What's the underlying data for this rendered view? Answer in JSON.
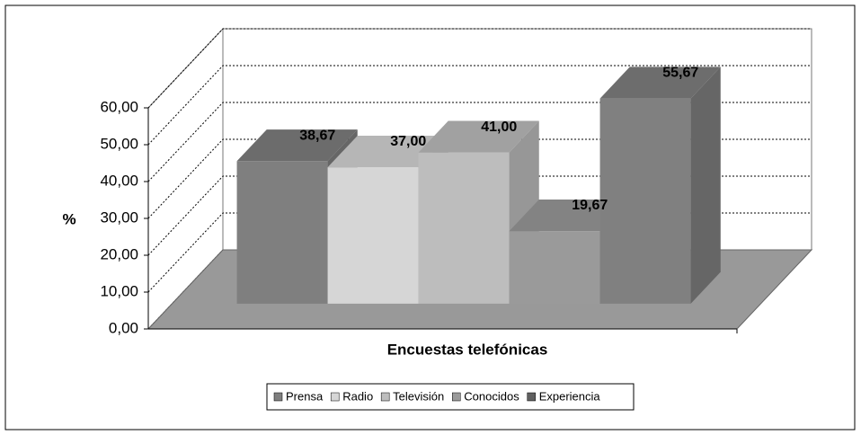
{
  "chart_data": {
    "type": "bar3d",
    "xlabel": "Encuestas telefónicas",
    "ylabel": "%",
    "ylim": [
      0,
      60
    ],
    "yticks": [
      {
        "value": 0,
        "label": "0,00"
      },
      {
        "value": 10,
        "label": "10,00"
      },
      {
        "value": 20,
        "label": "20,00"
      },
      {
        "value": 30,
        "label": "30,00"
      },
      {
        "value": 40,
        "label": "40,00"
      },
      {
        "value": 50,
        "label": "50,00"
      },
      {
        "value": 60,
        "label": "60,00"
      }
    ],
    "grid": true,
    "legend": "bottom",
    "series": [
      {
        "name": "Prensa",
        "color": "#7f7f7f",
        "values": [
          38.67
        ],
        "value_labels": [
          "38,67"
        ]
      },
      {
        "name": "Radio",
        "color": "#d6d6d6",
        "values": [
          37.0
        ],
        "value_labels": [
          "37,00"
        ]
      },
      {
        "name": "Televisión",
        "color": "#bdbdbd",
        "values": [
          41.0
        ],
        "value_labels": [
          "41,00"
        ]
      },
      {
        "name": "Conocidos",
        "color": "#9a9a9a",
        "values": [
          19.67
        ],
        "value_labels": [
          "19,67"
        ]
      },
      {
        "name": "Experiencia",
        "color": "#808080",
        "values": [
          55.67
        ],
        "value_labels": [
          "55,67"
        ]
      }
    ]
  }
}
